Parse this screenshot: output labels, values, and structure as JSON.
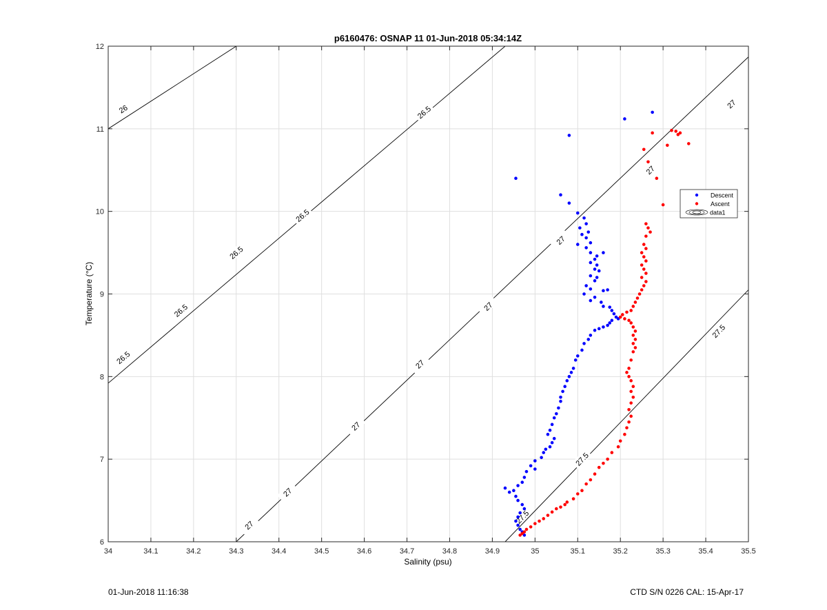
{
  "chart_data": {
    "type": "scatter",
    "title": "p6160476: OSNAP 11 01-Jun-2018 05:34:14Z",
    "xlabel": "Salinity (psu)",
    "ylabel": "Temperature (°C)",
    "xlim": [
      34,
      35.5
    ],
    "ylim": [
      6,
      12
    ],
    "xticks": [
      34,
      34.1,
      34.2,
      34.3,
      34.4,
      34.5,
      34.6,
      34.7,
      34.8,
      34.9,
      35,
      35.1,
      35.2,
      35.3,
      35.4,
      35.5
    ],
    "xtick_labels": [
      "34",
      "34.1",
      "34.2",
      "34.3",
      "34.4",
      "34.5",
      "34.6",
      "34.7",
      "34.8",
      "34.9",
      "35",
      "35.1",
      "35.2",
      "35.3",
      "35.4",
      "35.5"
    ],
    "yticks": [
      6,
      7,
      8,
      9,
      10,
      11,
      12
    ],
    "ytick_labels": [
      "6",
      "7",
      "8",
      "9",
      "10",
      "11",
      "12"
    ],
    "grid": true,
    "legend_position": "right, middle",
    "legend": [
      {
        "label": "Descent",
        "marker": "dot",
        "color": "#0000ff"
      },
      {
        "label": "Ascent",
        "marker": "dot",
        "color": "#ff0000"
      },
      {
        "label": "data1",
        "marker": "contour",
        "color": "#000000"
      }
    ],
    "contours": [
      {
        "level": "26",
        "points": [
          [
            34.0,
            11.0
          ],
          [
            34.3,
            12.0
          ]
        ],
        "labels": [
          [
            34.035,
            11.24
          ]
        ]
      },
      {
        "level": "26.5",
        "points": [
          [
            34.0,
            7.92
          ],
          [
            34.93,
            12.0
          ]
        ],
        "labels": [
          [
            34.035,
            8.23
          ],
          [
            34.17,
            8.8
          ],
          [
            34.455,
            9.95
          ],
          [
            34.3,
            9.5
          ],
          [
            34.74,
            11.2
          ]
        ]
      },
      {
        "level": "27",
        "points": [
          [
            34.3,
            6.0
          ],
          [
            35.5,
            11.87
          ]
        ],
        "labels": [
          [
            34.33,
            6.2
          ],
          [
            34.42,
            6.6
          ],
          [
            34.58,
            7.4
          ],
          [
            34.73,
            8.15
          ],
          [
            34.89,
            8.85
          ],
          [
            35.06,
            9.65
          ],
          [
            35.27,
            10.5
          ],
          [
            35.46,
            11.3
          ]
        ]
      },
      {
        "level": "27.5",
        "points": [
          [
            34.93,
            6.0
          ],
          [
            35.5,
            9.05
          ]
        ],
        "labels": [
          [
            34.97,
            6.3
          ],
          [
            35.11,
            7.0
          ],
          [
            35.43,
            8.55
          ]
        ]
      }
    ],
    "series": [
      {
        "name": "Descent",
        "color": "#0000ff",
        "points": [
          [
            34.955,
            10.4
          ],
          [
            35.08,
            10.92
          ],
          [
            35.21,
            11.12
          ],
          [
            35.275,
            11.2
          ],
          [
            35.06,
            10.2
          ],
          [
            35.08,
            10.1
          ],
          [
            35.1,
            9.98
          ],
          [
            35.115,
            9.92
          ],
          [
            35.12,
            9.85
          ],
          [
            35.105,
            9.8
          ],
          [
            35.125,
            9.75
          ],
          [
            35.11,
            9.72
          ],
          [
            35.12,
            9.68
          ],
          [
            35.13,
            9.62
          ],
          [
            35.1,
            9.6
          ],
          [
            35.12,
            9.56
          ],
          [
            35.13,
            9.5
          ],
          [
            35.145,
            9.46
          ],
          [
            35.16,
            9.5
          ],
          [
            35.14,
            9.42
          ],
          [
            35.13,
            9.38
          ],
          [
            35.145,
            9.35
          ],
          [
            35.14,
            9.3
          ],
          [
            35.15,
            9.28
          ],
          [
            35.13,
            9.22
          ],
          [
            35.145,
            9.2
          ],
          [
            35.14,
            9.16
          ],
          [
            35.12,
            9.1
          ],
          [
            35.13,
            9.06
          ],
          [
            35.16,
            9.04
          ],
          [
            35.17,
            9.05
          ],
          [
            35.115,
            9.0
          ],
          [
            35.14,
            8.96
          ],
          [
            35.13,
            8.92
          ],
          [
            35.155,
            8.9
          ],
          [
            35.16,
            8.85
          ],
          [
            35.175,
            8.84
          ],
          [
            35.18,
            8.8
          ],
          [
            35.185,
            8.76
          ],
          [
            35.19,
            8.72
          ],
          [
            35.195,
            8.7
          ],
          [
            35.18,
            8.68
          ],
          [
            35.175,
            8.65
          ],
          [
            35.17,
            8.62
          ],
          [
            35.16,
            8.6
          ],
          [
            35.15,
            8.58
          ],
          [
            35.14,
            8.56
          ],
          [
            35.13,
            8.5
          ],
          [
            35.125,
            8.45
          ],
          [
            35.115,
            8.4
          ],
          [
            35.11,
            8.32
          ],
          [
            35.1,
            8.25
          ],
          [
            35.095,
            8.2
          ],
          [
            35.09,
            8.1
          ],
          [
            35.085,
            8.05
          ],
          [
            35.08,
            8.0
          ],
          [
            35.075,
            7.95
          ],
          [
            35.07,
            7.88
          ],
          [
            35.065,
            7.82
          ],
          [
            35.06,
            7.75
          ],
          [
            35.06,
            7.7
          ],
          [
            35.055,
            7.62
          ],
          [
            35.05,
            7.55
          ],
          [
            35.045,
            7.5
          ],
          [
            35.04,
            7.42
          ],
          [
            35.035,
            7.35
          ],
          [
            35.03,
            7.3
          ],
          [
            35.045,
            7.25
          ],
          [
            35.04,
            7.2
          ],
          [
            35.035,
            7.15
          ],
          [
            35.025,
            7.12
          ],
          [
            35.02,
            7.08
          ],
          [
            35.015,
            7.02
          ],
          [
            35.0,
            6.98
          ],
          [
            34.99,
            6.92
          ],
          [
            35.0,
            6.88
          ],
          [
            34.98,
            6.85
          ],
          [
            34.975,
            6.78
          ],
          [
            34.97,
            6.72
          ],
          [
            34.96,
            6.68
          ],
          [
            34.95,
            6.62
          ],
          [
            34.93,
            6.65
          ],
          [
            34.94,
            6.6
          ],
          [
            34.955,
            6.55
          ],
          [
            34.96,
            6.5
          ],
          [
            34.97,
            6.45
          ],
          [
            34.975,
            6.4
          ],
          [
            34.965,
            6.35
          ],
          [
            34.96,
            6.3
          ],
          [
            34.955,
            6.25
          ],
          [
            34.96,
            6.2
          ],
          [
            34.965,
            6.15
          ],
          [
            34.97,
            6.12
          ],
          [
            34.975,
            6.08
          ]
        ]
      },
      {
        "name": "Ascent",
        "color": "#ff0000",
        "points": [
          [
            35.275,
            10.95
          ],
          [
            35.32,
            10.98
          ],
          [
            35.33,
            10.97
          ],
          [
            35.34,
            10.95
          ],
          [
            35.335,
            10.93
          ],
          [
            35.36,
            10.82
          ],
          [
            35.31,
            10.8
          ],
          [
            35.255,
            10.75
          ],
          [
            35.265,
            10.6
          ],
          [
            35.285,
            10.4
          ],
          [
            35.3,
            10.08
          ],
          [
            35.26,
            9.85
          ],
          [
            35.265,
            9.8
          ],
          [
            35.27,
            9.75
          ],
          [
            35.26,
            9.7
          ],
          [
            35.255,
            9.6
          ],
          [
            35.26,
            9.55
          ],
          [
            35.25,
            9.5
          ],
          [
            35.255,
            9.45
          ],
          [
            35.26,
            9.4
          ],
          [
            35.25,
            9.35
          ],
          [
            35.255,
            9.3
          ],
          [
            35.26,
            9.25
          ],
          [
            35.25,
            9.2
          ],
          [
            35.26,
            9.15
          ],
          [
            35.255,
            9.1
          ],
          [
            35.25,
            9.05
          ],
          [
            35.245,
            9.0
          ],
          [
            35.24,
            8.95
          ],
          [
            35.235,
            8.9
          ],
          [
            35.23,
            8.85
          ],
          [
            35.225,
            8.8
          ],
          [
            35.215,
            8.78
          ],
          [
            35.205,
            8.75
          ],
          [
            35.2,
            8.72
          ],
          [
            35.21,
            8.7
          ],
          [
            35.22,
            8.68
          ],
          [
            35.225,
            8.65
          ],
          [
            35.23,
            8.6
          ],
          [
            35.235,
            8.55
          ],
          [
            35.23,
            8.5
          ],
          [
            35.235,
            8.45
          ],
          [
            35.23,
            8.4
          ],
          [
            35.235,
            8.35
          ],
          [
            35.23,
            8.3
          ],
          [
            35.225,
            8.2
          ],
          [
            35.22,
            8.1
          ],
          [
            35.215,
            8.05
          ],
          [
            35.22,
            8.0
          ],
          [
            35.225,
            7.95
          ],
          [
            35.23,
            7.88
          ],
          [
            35.225,
            7.82
          ],
          [
            35.23,
            7.75
          ],
          [
            35.225,
            7.68
          ],
          [
            35.22,
            7.6
          ],
          [
            35.225,
            7.52
          ],
          [
            35.22,
            7.45
          ],
          [
            35.215,
            7.38
          ],
          [
            35.21,
            7.3
          ],
          [
            35.2,
            7.22
          ],
          [
            35.195,
            7.15
          ],
          [
            35.18,
            7.08
          ],
          [
            35.17,
            7.0
          ],
          [
            35.16,
            6.95
          ],
          [
            35.15,
            6.9
          ],
          [
            35.14,
            6.82
          ],
          [
            35.13,
            6.75
          ],
          [
            35.12,
            6.7
          ],
          [
            35.11,
            6.62
          ],
          [
            35.1,
            6.58
          ],
          [
            35.09,
            6.52
          ],
          [
            35.075,
            6.48
          ],
          [
            35.07,
            6.45
          ],
          [
            35.06,
            6.42
          ],
          [
            35.05,
            6.4
          ],
          [
            35.04,
            6.36
          ],
          [
            35.03,
            6.32
          ],
          [
            35.02,
            6.28
          ],
          [
            35.01,
            6.25
          ],
          [
            35.0,
            6.22
          ],
          [
            34.99,
            6.18
          ],
          [
            34.98,
            6.15
          ],
          [
            34.975,
            6.12
          ],
          [
            34.97,
            6.1
          ],
          [
            34.965,
            6.08
          ]
        ]
      }
    ]
  },
  "footer": {
    "left": "01-Jun-2018 11:16:38",
    "right": "CTD S/N 0226  CAL: 15-Apr-17"
  }
}
